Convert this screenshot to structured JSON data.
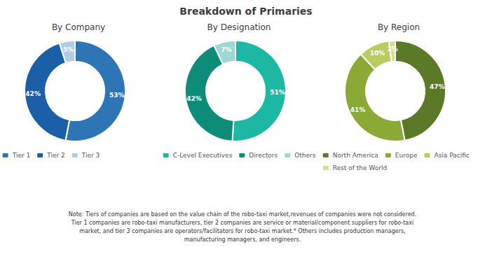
{
  "title": "Breakdown of Primaries",
  "annotations": [
    "Note: Tiers of companies are based on the value chain of the robo-taxi market,revenues of companies were not considered.\nTier 1 companies are robo-taxi manufacturers, tier 2 companies are service or material/component suppliers for robo-taxi\nmarket, and tier 3 companies are operators/facilitators for robo-taxi market.* Others includes production managers,\nmanufacturing managers, and engineers."
  ],
  "chart_data": [
    {
      "type": "pie",
      "title": "By Company",
      "categories": [
        "Tier 1",
        "Tier 2",
        "Tier 3"
      ],
      "values": [
        53,
        42,
        5
      ],
      "value_labels": [
        "53%",
        "42%",
        "5%"
      ],
      "colors": [
        "#2e75b6",
        "#1a5fa8",
        "#aecde3"
      ],
      "data_labels": true,
      "legend": "bottom"
    },
    {
      "type": "pie",
      "title": "By Designation",
      "categories": [
        "C-Level Executives",
        "Directors",
        "Others"
      ],
      "values": [
        51,
        42,
        7
      ],
      "value_labels": [
        "51%",
        "42%",
        "7%"
      ],
      "colors": [
        "#1db8a4",
        "#0e8c7a",
        "#9dd9d2"
      ],
      "data_labels": true,
      "legend": "bottom"
    },
    {
      "type": "pie",
      "title": "By Region",
      "categories": [
        "North America",
        "Europe",
        "Asia Pacific",
        "Rest of the World"
      ],
      "values": [
        47,
        41,
        10,
        2
      ],
      "value_labels": [
        "47%",
        "41%",
        "10%",
        "2%"
      ],
      "colors": [
        "#5a7a28",
        "#8aaa35",
        "#b8cc60",
        "#d4e090"
      ],
      "data_labels": true,
      "legend": "bottom"
    }
  ]
}
